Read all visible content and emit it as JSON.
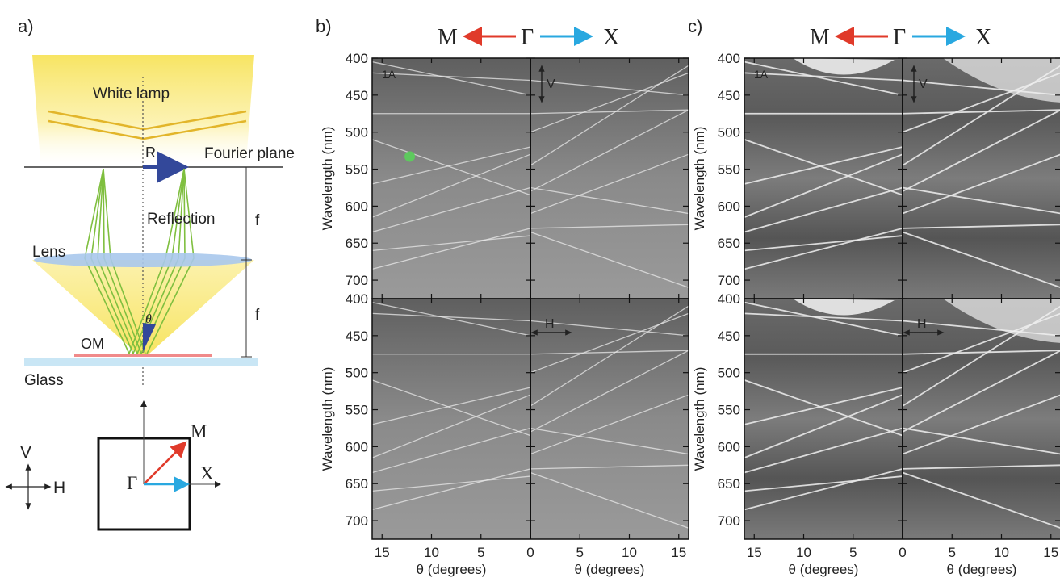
{
  "panel_a": {
    "label": "a)",
    "white_lamp": "White lamp",
    "fourier_plane": "Fourier plane",
    "r": "R",
    "reflection": "Reflection",
    "f_upper": "f",
    "f_lower": "f",
    "lens": "Lens",
    "theta": "θ",
    "om": "OM",
    "glass": "Glass",
    "pol_v": "V",
    "pol_h": "H",
    "bz_m": "M",
    "bz_gamma": "Γ",
    "bz_x": "X",
    "colors": {
      "lamp": "#f7e66a",
      "rays": "#7fbf3f",
      "om": "#f08a8a",
      "glass": "#c9e6f5",
      "lens": "#a8c8ec",
      "arrow_blue": "#33489a",
      "arrow_red": "#e03a2a",
      "arrow_cyan": "#29a8e0"
    }
  },
  "panel_b": {
    "label": "b)",
    "header_m": "M",
    "header_gamma": "Γ",
    "header_x": "X",
    "tag": "1A",
    "pol_top": "V",
    "pol_bottom": "H",
    "ylabel_top": "Wavelength (nm)",
    "ylabel_bottom": "Wavelength (nm)",
    "xlabel_left": "θ (degrees)",
    "xlabel_right": "θ (degrees)",
    "marker_color": "#5ec95e"
  },
  "panel_c": {
    "label": "c)",
    "header_m": "M",
    "header_gamma": "Γ",
    "header_x": "X",
    "tag": "1A",
    "pol_top": "V",
    "pol_bottom": "H",
    "ylabel_top": "Wavelength (nm)",
    "ylabel_bottom": "Wavelength (nm)",
    "xlabel_left": "θ (degrees)",
    "xlabel_right": "θ (degrees)"
  },
  "axes": {
    "y_ticks": [
      "400",
      "450",
      "500",
      "550",
      "600",
      "650",
      "700"
    ],
    "x_ticks_left": [
      "15",
      "10",
      "5",
      "0"
    ],
    "x_ticks_right": [
      "5",
      "10",
      "15"
    ],
    "wavelength_range_nm": [
      400,
      725
    ],
    "angle_range_deg": [
      0,
      16
    ]
  }
}
